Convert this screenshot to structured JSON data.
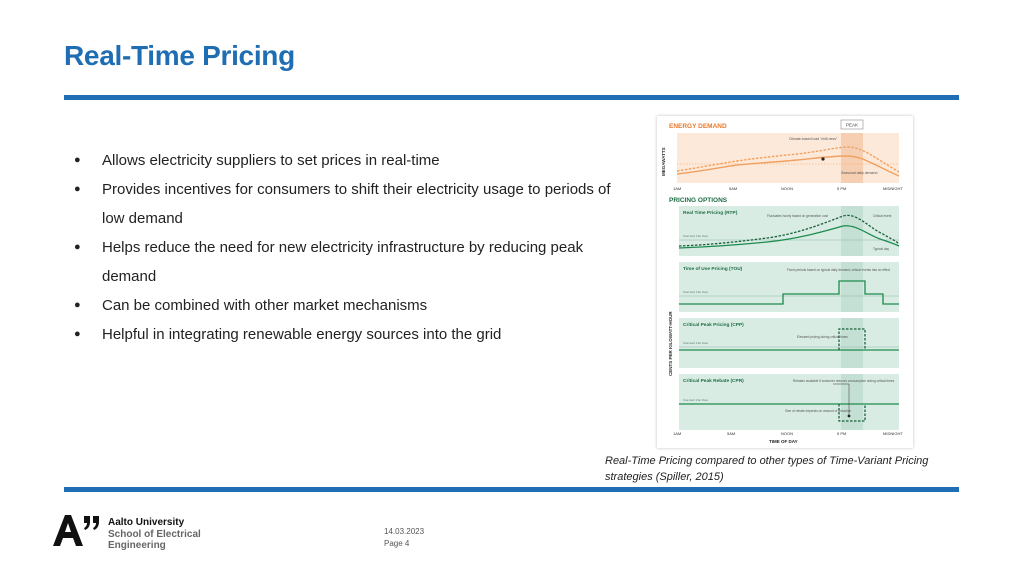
{
  "slide": {
    "title": "Real-Time Pricing",
    "bullets": [
      "Allows electricity suppliers to set prices in real-time",
      "Provides incentives for consumers to shift their electricity usage to periods of low demand",
      "Helps reduce the need for new electricity infrastructure by reducing peak demand",
      "Can be combined with other market mechanisms",
      "Helpful in integrating renewable energy sources into the grid"
    ],
    "bullet_glyph": "●",
    "caption": "Real-Time Pricing compared to other types of Time-Variant Pricing strategies (Spiller, 2015)"
  },
  "figure": {
    "energy_demand": {
      "heading": "ENERGY DEMAND",
      "ylabel": "MEGAWATTS",
      "peak_label": "PEAK",
      "note_top": "Climate-based load \"chill-ness\"",
      "note_right": "Seasonal daily demand"
    },
    "pricing_heading": "PRICING OPTIONS",
    "shared_ylabel": "CENTS PER KILOWATT-HOUR",
    "flat_rate_label": "Standard Flat Rate",
    "panels": [
      {
        "name": "Real Time Pricing (RTP)",
        "note": "Fluctuates hourly based on generation cost",
        "note2": "Critical event",
        "note3": "Typical day"
      },
      {
        "name": "Time of Use Pricing (TOU)",
        "note": "Fixed periods based on typical daily demand; critical events has no effect"
      },
      {
        "name": "Critical Peak Pricing (CPP)",
        "note": "Elevated pricing during critical times"
      },
      {
        "name": "Critical Peak Rebate (CPR)",
        "note": "Rebates available if customer reduces consumption during critical times",
        "note2": "Size of rebate depends on amount of reduction"
      }
    ],
    "time_axis": {
      "label": "TIME OF DAY",
      "ticks": [
        "1AM",
        "5AM",
        "NOON",
        "5 PM",
        "MIDNIGHT"
      ]
    },
    "colors": {
      "demand": "#f0a060",
      "demand_bg": "#fde9d9",
      "pricing_bg": "#d8ece4",
      "pricing_line": "#1e8a4e",
      "pricing_dashed": "#1a5e38",
      "headings_orange": "#e9782a",
      "headings_green": "#1e6d45"
    }
  },
  "footer": {
    "org_line1": "Aalto University",
    "org_line2": "School of Electrical",
    "org_line3": "Engineering",
    "date": "14.03.2023",
    "page": "Page 4"
  }
}
